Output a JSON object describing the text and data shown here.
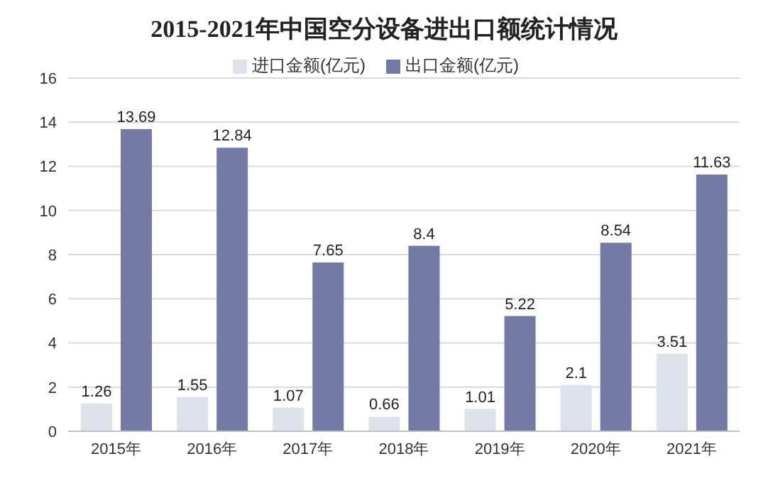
{
  "chart_data": {
    "type": "bar",
    "title": "2015-2021年中国空分设备进出口额统计情况",
    "categories": [
      "2015年",
      "2016年",
      "2017年",
      "2018年",
      "2019年",
      "2020年",
      "2021年"
    ],
    "series": [
      {
        "name": "进口金额(亿元)",
        "color": "#dde1ea",
        "values": [
          1.26,
          1.55,
          1.07,
          0.66,
          1.01,
          2.1,
          3.51
        ]
      },
      {
        "name": "出口金额(亿元)",
        "color": "#727aa5",
        "values": [
          13.69,
          12.84,
          7.65,
          8.4,
          5.22,
          8.54,
          11.63
        ]
      }
    ],
    "ylim": [
      0,
      16
    ],
    "yticks": [
      0,
      2,
      4,
      6,
      8,
      10,
      12,
      14,
      16
    ],
    "grid": "y",
    "legend": "top",
    "data_labels": true
  }
}
